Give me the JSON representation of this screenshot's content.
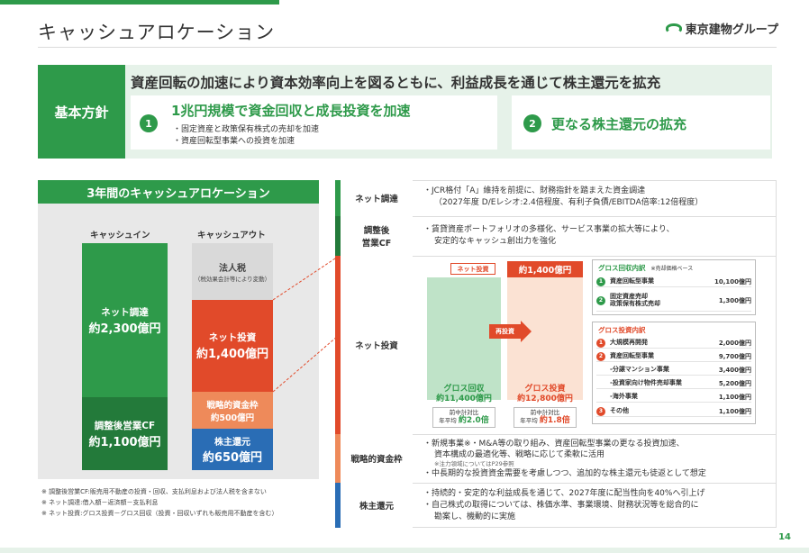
{
  "header": {
    "title": "キャッシュアロケーション",
    "brand": "東京建物グループ"
  },
  "policy": {
    "label": "基本方針",
    "headline": "資産回転の加速により資本効率向上を図るともに、利益成長を通じて株主還元を拡充",
    "card1": {
      "num": "1",
      "title": "1兆円規模で資金回収と成長投資を加速",
      "bullets": [
        "・固定資産と政策保有株式の売却を加速",
        "・資産回転型事業への投資を加速"
      ]
    },
    "card2": {
      "num": "2",
      "title": "更なる株主還元の拡充"
    }
  },
  "allocation": {
    "title": "3年間のキャッシュアロケーション",
    "in_head": "キャッシュイン",
    "out_head": "キャッシュアウト",
    "in_top": {
      "label": "ネット調達",
      "value": "約2,300億円"
    },
    "in_bot": {
      "label": "調整後営業CF",
      "value": "約1,100億円"
    },
    "out1": {
      "label": "法人税",
      "note": "（税効果会計等により変動）"
    },
    "out2": {
      "label": "ネット投資",
      "value": "約1,400億円"
    },
    "out3": {
      "label": "戦略的資金枠",
      "value": "約500億円"
    },
    "out4": {
      "label": "株主還元",
      "value": "約650億円"
    },
    "notes": [
      "※ 調整後営業CF:販売用不動産の投資・回収、支払利息および法人税を含まない",
      "※ ネット調達:借入額－返済額－支払利息",
      "※ ネット投資:グロス投資－グロス回収（投資・回収いずれも販売用不動産を含む）"
    ]
  },
  "rows": {
    "r1": {
      "label": "ネット調達",
      "lines": [
        "・JCR格付「A」維持を前提に、財務指針を踏まえた資金調達",
        "（2027年度 D/Eレシオ:2.4倍程度、有利子負債/EBITDA倍率:12倍程度）"
      ]
    },
    "r2": {
      "label": "調整後\n営業CF",
      "lines": [
        "・賃貸資産ポートフォリオの多様化、サービス事業の拡大等により、",
        "安定的なキャッシュ創出力を強化"
      ]
    },
    "r3": {
      "label": "ネット投資"
    },
    "r4": {
      "label": "戦略的資金枠",
      "lines": [
        "・新規事業※・M&A等の取り組み、資産回転型事業の更なる投資加速、",
        "資本構成の最適化等、戦略に応じて柔軟に活用",
        "・中長期的な投資資金需要を考慮しつつ、追加的な株主還元も徒返として想定"
      ],
      "sub": "※注力領域についてはP29参照"
    },
    "r5": {
      "label": "株主還元",
      "lines": [
        "・持続的・安定的な利益成長を通じて、2027年度に配当性向を40%へ引上げ",
        "・自己株式の取得については、株価水準、事業環境、財務状況等を総合的に",
        "勘案し、機動的に実施"
      ]
    }
  },
  "net_invest": {
    "net_label": "ネット投資",
    "net_value": "約1,400億円",
    "arrow_label": "再投資",
    "gross_recovery": {
      "label": "グロス回収",
      "value": "約11,400億円",
      "sub1": "前中計対比",
      "sub2": "年平均",
      "mult": "約2.0倍"
    },
    "gross_invest": {
      "label": "グロス投資",
      "value": "約12,800億円",
      "sub1": "前中計対比",
      "sub2": "年平均",
      "mult": "約1.8倍"
    },
    "recovery_table": {
      "title": "グロス回収内訳",
      "note": "※売却価格ベース",
      "rows": [
        {
          "num": "1",
          "label": "資産回転型事業",
          "value": "10,100億円"
        },
        {
          "num": "2",
          "label": "固定資産売却\n政策保有株式売却",
          "value": "1,300億円"
        }
      ]
    },
    "invest_table": {
      "title": "グロス投資内訳",
      "rows": [
        {
          "num": "1",
          "label": "大規模再開発",
          "value": "2,000億円",
          "indent": false
        },
        {
          "num": "2",
          "label": "資産回転型事業",
          "value": "9,700億円",
          "indent": false
        },
        {
          "num": "",
          "label": "-分譲マンション事業",
          "value": "3,400億円",
          "indent": true
        },
        {
          "num": "",
          "label": "-投資家向け物件売却事業",
          "value": "5,200億円",
          "indent": true
        },
        {
          "num": "",
          "label": "-海外事業",
          "value": "1,100億円",
          "indent": true
        },
        {
          "num": "3",
          "label": "その他",
          "value": "1,100億円",
          "indent": false
        }
      ]
    }
  },
  "page_number": "14",
  "colors": {
    "green": "#2e9a4a",
    "dark_green": "#237a3a",
    "red": "#e14a2a",
    "orange": "#ee8a5a",
    "blue": "#2a6db5"
  }
}
